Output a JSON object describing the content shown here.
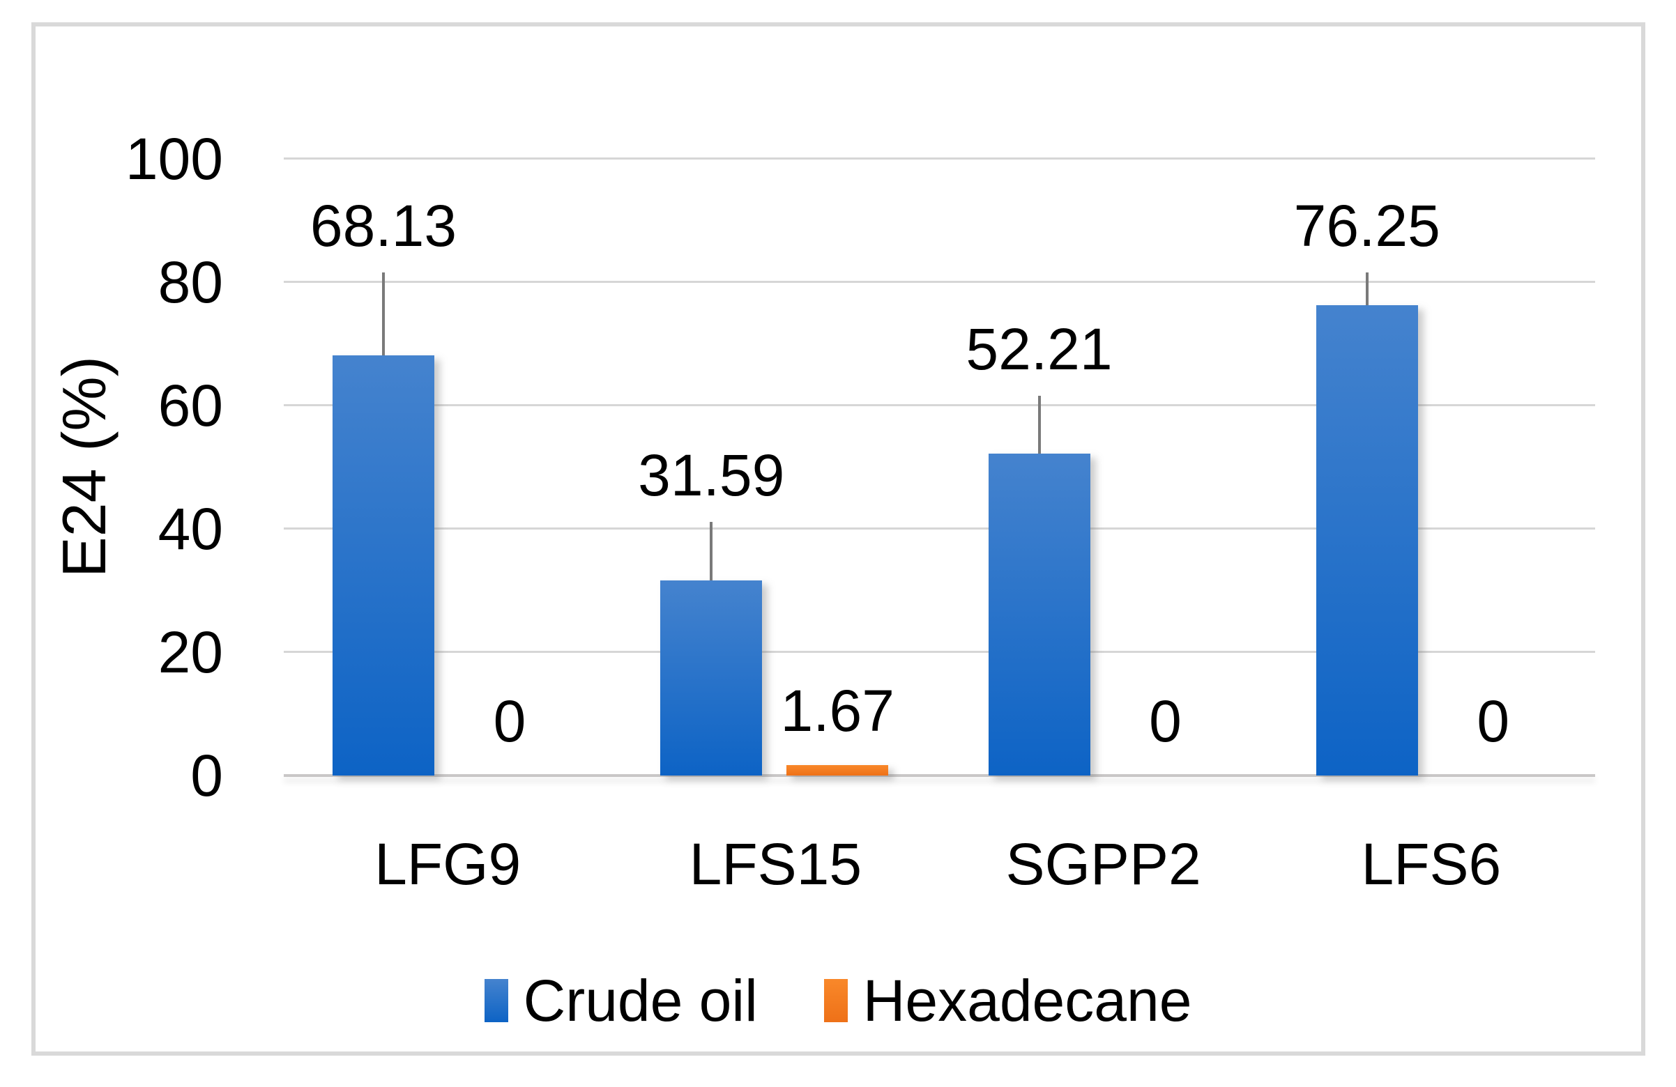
{
  "figure": {
    "background_color": "#ffffff",
    "border_color": "#d9d9d9"
  },
  "chart_data": {
    "type": "bar",
    "title": "",
    "categories": [
      "LFG9",
      "LFS15",
      "SGPP2",
      "LFS6"
    ],
    "series": [
      {
        "name": "Crude oil",
        "values": [
          68.13,
          31.59,
          52.21,
          76.25
        ],
        "errors_plus": [
          13.5,
          9.5,
          9.4,
          5.3
        ],
        "color": "#0d63c5",
        "color_light": "#4583ce"
      },
      {
        "name": "Hexadecane",
        "values": [
          0,
          1.67,
          0,
          0
        ],
        "errors_plus": [
          0,
          0,
          0,
          0
        ],
        "color": "#ee7118",
        "color_light": "#f9882a"
      }
    ],
    "data_labels_shown": true,
    "xlabel": "",
    "ylabel": "E24 (%)",
    "ylim": [
      0,
      100
    ],
    "yticks": [
      0,
      20,
      40,
      60,
      80,
      100
    ],
    "grid": true,
    "gridline_color": "#d6d6d6",
    "axis_line_color": "#c9c7c7",
    "error_bar_color": "#7a7a7a",
    "text_color": "#000000",
    "legend_position": "bottom"
  }
}
